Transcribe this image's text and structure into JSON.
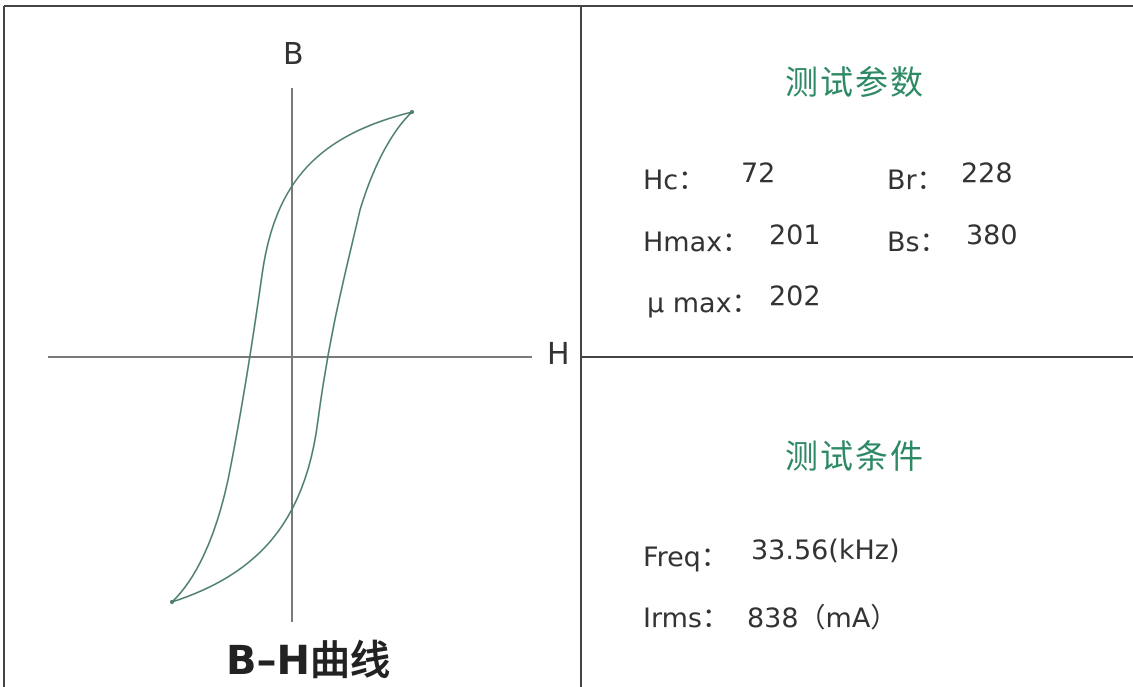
{
  "diagram": {
    "axes": {
      "y_label": "B",
      "x_label": "H"
    },
    "curve_caption": "B–H曲线",
    "colors": {
      "curve": "#4d7f6a",
      "axis": "#7a7a7a",
      "frame": "#444444",
      "heading": "#2e8a64"
    }
  },
  "test_params": {
    "title": "测试参数",
    "hc": {
      "label": "Hc：",
      "value": "72"
    },
    "br": {
      "label": "Br：",
      "value": "228"
    },
    "hmax": {
      "label": "Hmax：",
      "value": "201"
    },
    "bs": {
      "label": "Bs：",
      "value": "380"
    },
    "umax": {
      "label": "μ max：",
      "value": "202"
    }
  },
  "test_conditions": {
    "title": "测试条件",
    "freq": {
      "label": "Freq：",
      "value": "33.56(kHz)"
    },
    "irms": {
      "label": "Irms：",
      "value": "838（mA）"
    }
  }
}
